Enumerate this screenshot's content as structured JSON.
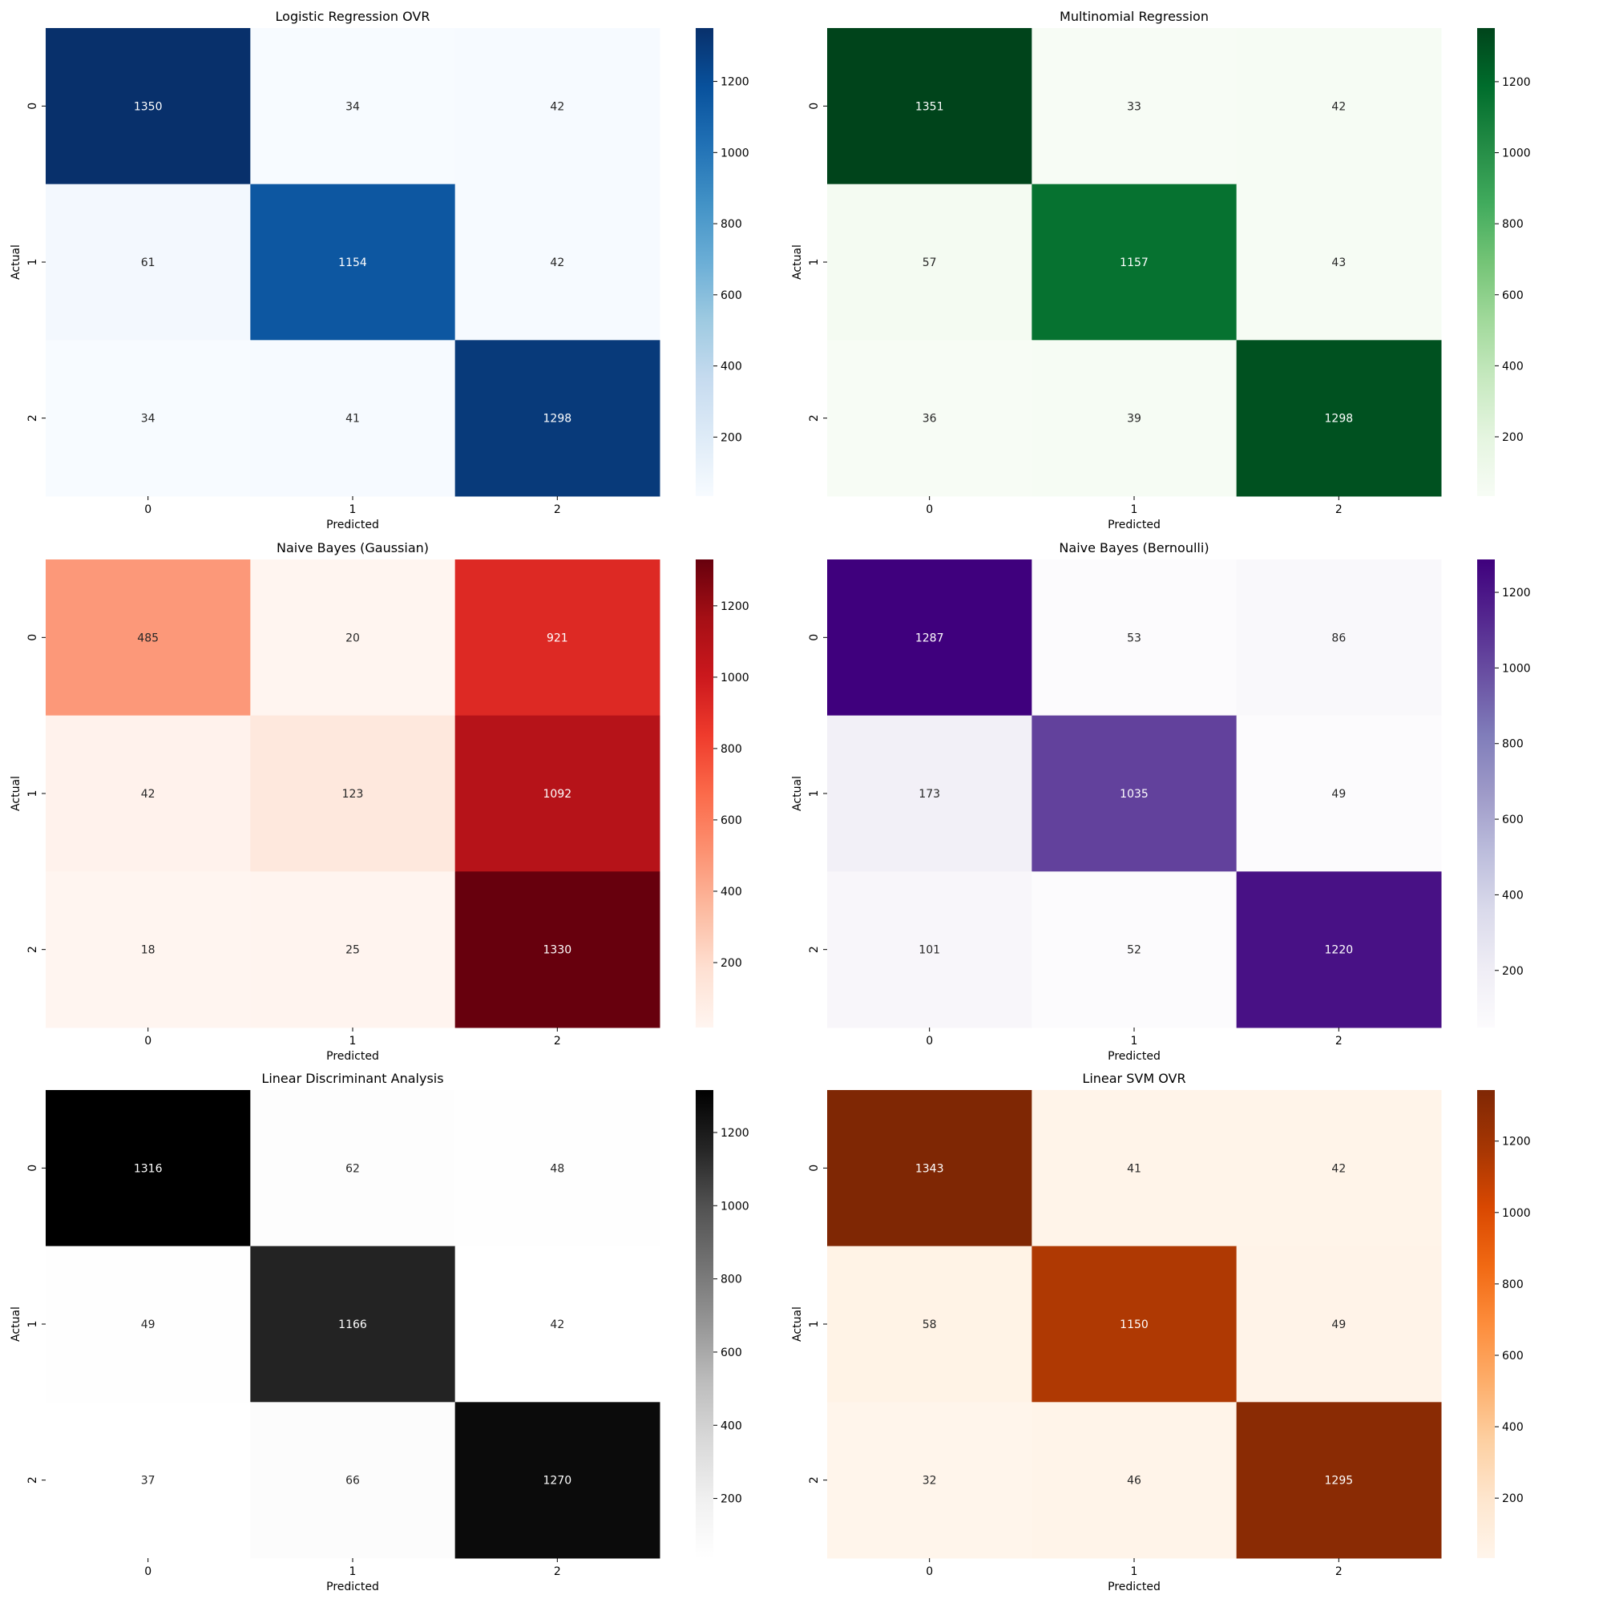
{
  "chart_data": [
    {
      "type": "heatmap",
      "title": "Logistic Regression OVR",
      "xlabel": "Predicted",
      "ylabel": "Actual",
      "x_categories": [
        "0",
        "1",
        "2"
      ],
      "y_categories": [
        "0",
        "1",
        "2"
      ],
      "values": [
        [
          1350,
          34,
          42
        ],
        [
          61,
          1154,
          42
        ],
        [
          34,
          41,
          1298
        ]
      ],
      "colormap": "Blues",
      "colors": [
        "#f7fbff",
        "#deebf7",
        "#c6dbef",
        "#9ecae1",
        "#6baed6",
        "#4292c6",
        "#2171b5",
        "#08519c",
        "#08306b"
      ],
      "colorbar_ticks": [
        200,
        400,
        600,
        800,
        1000,
        1200
      ],
      "colorbar_range": [
        34,
        1350
      ]
    },
    {
      "type": "heatmap",
      "title": "Multinomial Regression",
      "xlabel": "Predicted",
      "ylabel": "Actual",
      "x_categories": [
        "0",
        "1",
        "2"
      ],
      "y_categories": [
        "0",
        "1",
        "2"
      ],
      "values": [
        [
          1351,
          33,
          42
        ],
        [
          57,
          1157,
          43
        ],
        [
          36,
          39,
          1298
        ]
      ],
      "colormap": "Greens",
      "colors": [
        "#f7fcf5",
        "#e5f5e0",
        "#c7e9c0",
        "#a1d99b",
        "#74c476",
        "#41ab5d",
        "#238b45",
        "#006d2c",
        "#00441b"
      ],
      "colorbar_ticks": [
        200,
        400,
        600,
        800,
        1000,
        1200
      ],
      "colorbar_range": [
        33,
        1351
      ]
    },
    {
      "type": "heatmap",
      "title": "Naive Bayes (Gaussian)",
      "xlabel": "Predicted",
      "ylabel": "Actual",
      "x_categories": [
        "0",
        "1",
        "2"
      ],
      "y_categories": [
        "0",
        "1",
        "2"
      ],
      "values": [
        [
          485,
          20,
          921
        ],
        [
          42,
          123,
          1092
        ],
        [
          18,
          25,
          1330
        ]
      ],
      "colormap": "Reds",
      "colors": [
        "#fff5f0",
        "#fee0d2",
        "#fcbba1",
        "#fc9272",
        "#fb6a4a",
        "#ef3b2c",
        "#cb181d",
        "#a50f15",
        "#67000d"
      ],
      "colorbar_ticks": [
        200,
        400,
        600,
        800,
        1000,
        1200
      ],
      "colorbar_range": [
        18,
        1330
      ]
    },
    {
      "type": "heatmap",
      "title": "Naive Bayes (Bernoulli)",
      "xlabel": "Predicted",
      "ylabel": "Actual",
      "x_categories": [
        "0",
        "1",
        "2"
      ],
      "y_categories": [
        "0",
        "1",
        "2"
      ],
      "values": [
        [
          1287,
          53,
          86
        ],
        [
          173,
          1035,
          49
        ],
        [
          101,
          52,
          1220
        ]
      ],
      "colormap": "Purples",
      "colors": [
        "#fcfbfd",
        "#efedf5",
        "#dadaeb",
        "#bcbddc",
        "#9e9ac8",
        "#807dba",
        "#6a51a3",
        "#54278f",
        "#3f007d"
      ],
      "colorbar_ticks": [
        200,
        400,
        600,
        800,
        1000,
        1200
      ],
      "colorbar_range": [
        49,
        1287
      ]
    },
    {
      "type": "heatmap",
      "title": "Linear Discriminant Analysis",
      "xlabel": "Predicted",
      "ylabel": "Actual",
      "x_categories": [
        "0",
        "1",
        "2"
      ],
      "y_categories": [
        "0",
        "1",
        "2"
      ],
      "values": [
        [
          1316,
          62,
          48
        ],
        [
          49,
          1166,
          42
        ],
        [
          37,
          66,
          1270
        ]
      ],
      "colormap": "Greys",
      "colors": [
        "#ffffff",
        "#f0f0f0",
        "#d9d9d9",
        "#bdbdbd",
        "#969696",
        "#737373",
        "#525252",
        "#252525",
        "#000000"
      ],
      "colorbar_ticks": [
        200,
        400,
        600,
        800,
        1000,
        1200
      ],
      "colorbar_range": [
        37,
        1316
      ]
    },
    {
      "type": "heatmap",
      "title": "Linear SVM OVR",
      "xlabel": "Predicted",
      "ylabel": "Actual",
      "x_categories": [
        "0",
        "1",
        "2"
      ],
      "y_categories": [
        "0",
        "1",
        "2"
      ],
      "values": [
        [
          1343,
          41,
          42
        ],
        [
          58,
          1150,
          49
        ],
        [
          32,
          46,
          1295
        ]
      ],
      "colormap": "Oranges",
      "colors": [
        "#fff5eb",
        "#fee6ce",
        "#fdd0a2",
        "#fdae6b",
        "#fd8d3c",
        "#f16913",
        "#d94801",
        "#a63603",
        "#7f2704"
      ],
      "colorbar_ticks": [
        200,
        400,
        600,
        800,
        1000,
        1200
      ],
      "colorbar_range": [
        32,
        1343
      ]
    }
  ]
}
